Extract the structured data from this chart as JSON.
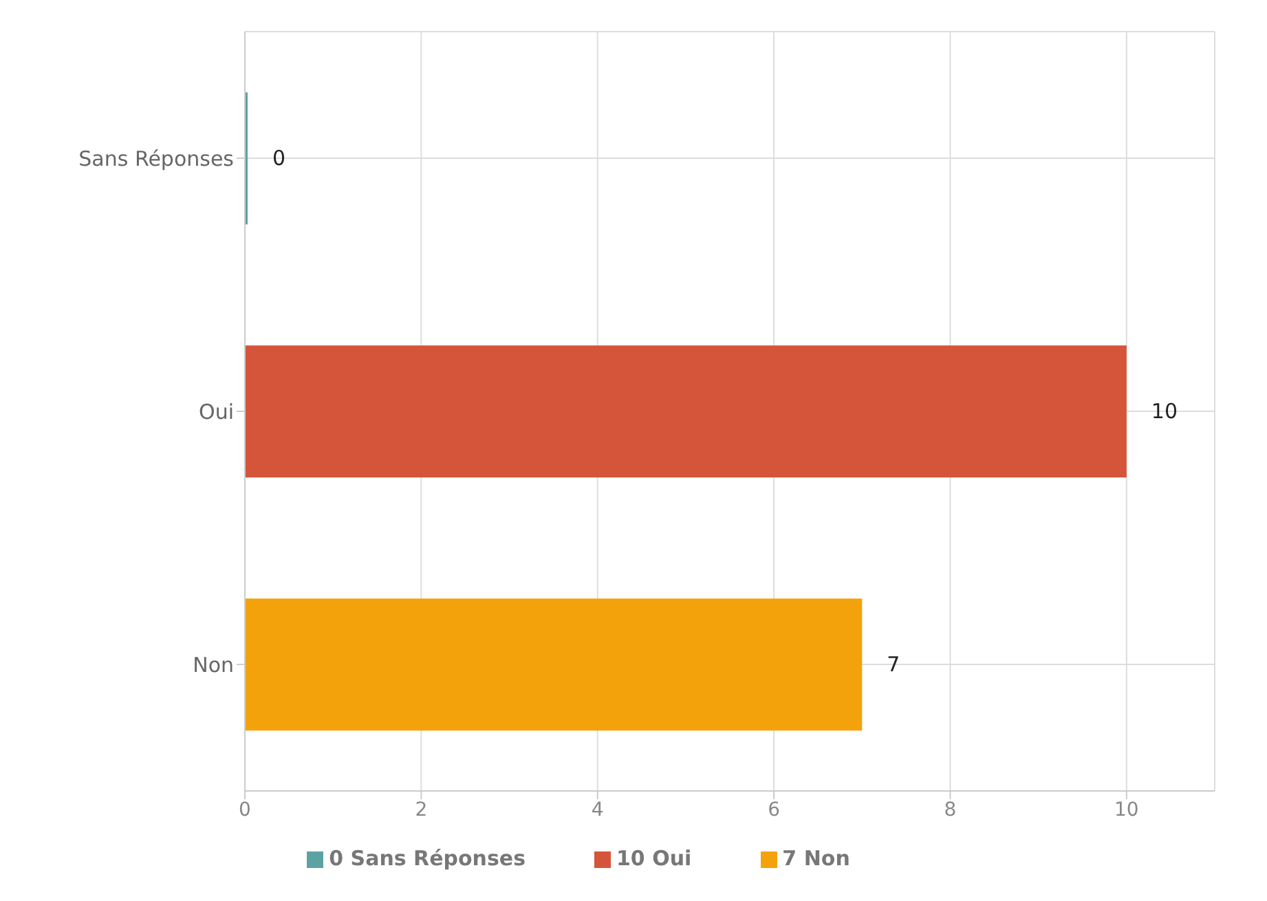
{
  "chart_data": {
    "type": "bar",
    "orientation": "horizontal",
    "stacked": true,
    "categories": [
      "Sans Réponses",
      "Oui",
      "Non"
    ],
    "series": [
      {
        "name": "0 Sans Réponses",
        "color": "#5ba3a3",
        "values": [
          0,
          null,
          null
        ]
      },
      {
        "name": "10 Oui",
        "color": "#d4553a",
        "values": [
          null,
          10,
          null
        ]
      },
      {
        "name": "7 Non",
        "color": "#f4a20c",
        "values": [
          null,
          null,
          7
        ]
      }
    ],
    "xlim": [
      0,
      11
    ],
    "xticks": [
      0,
      2,
      4,
      6,
      8,
      10
    ],
    "grid": true,
    "data_labels": true,
    "legend": "bottom"
  }
}
